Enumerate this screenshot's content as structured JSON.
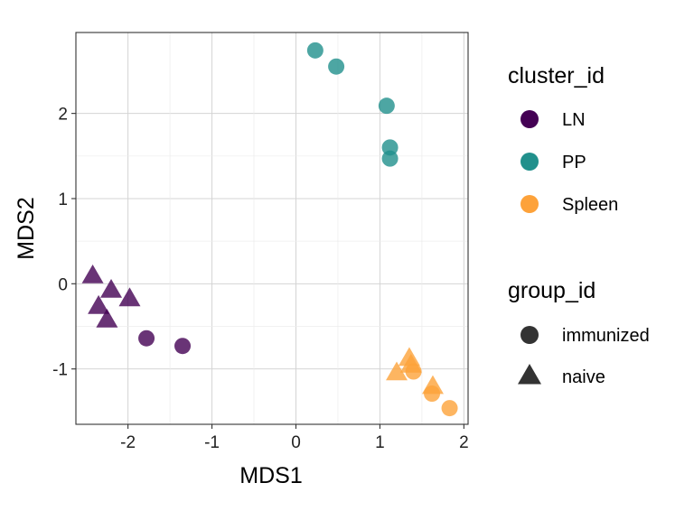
{
  "chart_data": {
    "type": "scatter",
    "xlabel": "MDS1",
    "ylabel": "MDS2",
    "xlim": [
      -2.62,
      2.05
    ],
    "ylim": [
      -1.65,
      2.95
    ],
    "xticks": [
      -2,
      -1,
      0,
      1,
      2
    ],
    "yticks": [
      -1,
      0,
      1,
      2
    ],
    "xtick_labels": [
      "-2",
      "-1",
      "0",
      "1",
      "2"
    ],
    "ytick_labels": [
      "-1",
      "0",
      "1",
      "2"
    ],
    "grid": true,
    "legend_position": "right",
    "color_legend": {
      "title": "cluster_id",
      "items": [
        {
          "label": "LN",
          "color": "#440154"
        },
        {
          "label": "PP",
          "color": "#21908C"
        },
        {
          "label": "Spleen",
          "color": "#FDA23A"
        }
      ]
    },
    "shape_legend": {
      "title": "group_id",
      "items": [
        {
          "label": "immunized",
          "shape": "circle"
        },
        {
          "label": "naive",
          "shape": "triangle"
        }
      ]
    },
    "points": [
      {
        "x": 0.23,
        "y": 2.74,
        "cluster": "PP",
        "group": "immunized"
      },
      {
        "x": 0.48,
        "y": 2.55,
        "cluster": "PP",
        "group": "immunized"
      },
      {
        "x": 1.08,
        "y": 2.09,
        "cluster": "PP",
        "group": "immunized"
      },
      {
        "x": 1.12,
        "y": 1.6,
        "cluster": "PP",
        "group": "immunized"
      },
      {
        "x": 1.12,
        "y": 1.47,
        "cluster": "PP",
        "group": "immunized"
      },
      {
        "x": -2.42,
        "y": 0.09,
        "cluster": "LN",
        "group": "naive"
      },
      {
        "x": -2.2,
        "y": -0.08,
        "cluster": "LN",
        "group": "naive"
      },
      {
        "x": -1.98,
        "y": -0.18,
        "cluster": "LN",
        "group": "naive"
      },
      {
        "x": -2.35,
        "y": -0.27,
        "cluster": "LN",
        "group": "naive"
      },
      {
        "x": -2.25,
        "y": -0.43,
        "cluster": "LN",
        "group": "naive"
      },
      {
        "x": -1.78,
        "y": -0.64,
        "cluster": "LN",
        "group": "immunized"
      },
      {
        "x": -1.35,
        "y": -0.73,
        "cluster": "LN",
        "group": "immunized"
      },
      {
        "x": 1.35,
        "y": -0.88,
        "cluster": "Spleen",
        "group": "naive"
      },
      {
        "x": 1.37,
        "y": -0.96,
        "cluster": "Spleen",
        "group": "naive"
      },
      {
        "x": 1.2,
        "y": -1.05,
        "cluster": "Spleen",
        "group": "naive"
      },
      {
        "x": 1.4,
        "y": -1.03,
        "cluster": "Spleen",
        "group": "immunized"
      },
      {
        "x": 1.63,
        "y": -1.21,
        "cluster": "Spleen",
        "group": "naive"
      },
      {
        "x": 1.62,
        "y": -1.29,
        "cluster": "Spleen",
        "group": "immunized"
      },
      {
        "x": 1.83,
        "y": -1.46,
        "cluster": "Spleen",
        "group": "immunized"
      }
    ]
  }
}
